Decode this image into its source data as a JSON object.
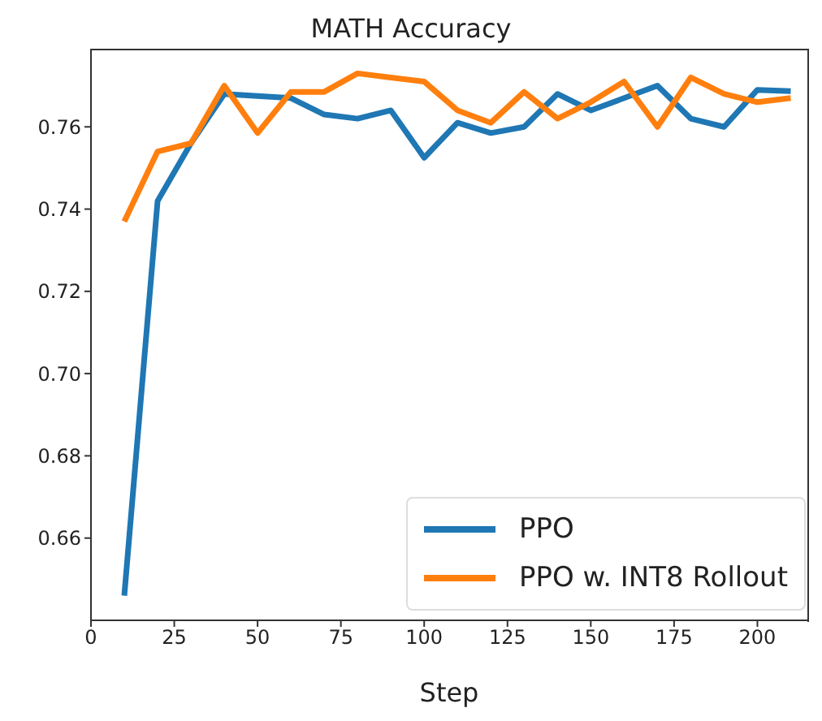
{
  "chart_data": {
    "type": "line",
    "title": "MATH Accuracy",
    "xlabel": "Step",
    "x": [
      10,
      20,
      30,
      40,
      50,
      60,
      70,
      80,
      90,
      100,
      110,
      120,
      130,
      140,
      150,
      160,
      170,
      180,
      190,
      200,
      210
    ],
    "series": [
      {
        "name": "PPO",
        "color": "#1f77b4",
        "values": [
          0.646,
          0.742,
          0.756,
          0.768,
          0.7675,
          0.767,
          0.763,
          0.762,
          0.764,
          0.7525,
          0.761,
          0.7585,
          0.76,
          0.768,
          0.764,
          0.767,
          0.77,
          0.762,
          0.76,
          0.769,
          0.7687
        ]
      },
      {
        "name": "PPO w. INT8 Rollout",
        "color": "#ff7f0e",
        "values": [
          0.737,
          0.754,
          0.756,
          0.77,
          0.7585,
          0.7685,
          0.7685,
          0.773,
          0.772,
          0.771,
          0.764,
          0.761,
          0.7685,
          0.762,
          0.766,
          0.771,
          0.76,
          0.772,
          0.768,
          0.766,
          0.767
        ]
      }
    ],
    "xlim": [
      0,
      215
    ],
    "xticks": [
      0,
      25,
      50,
      75,
      100,
      125,
      150,
      175,
      200
    ],
    "ylim": [
      0.64,
      0.779
    ],
    "yticks": [
      {
        "value": 0.66,
        "label": "0.66"
      },
      {
        "value": 0.68,
        "label": "0.68"
      },
      {
        "value": 0.7,
        "label": "0.70"
      },
      {
        "value": 0.72,
        "label": "0.72"
      },
      {
        "value": 0.74,
        "label": "0.74"
      },
      {
        "value": 0.76,
        "label": "0.76"
      }
    ],
    "grid": false,
    "legend": "bottom right",
    "marker": "none",
    "line_style": "solid"
  }
}
